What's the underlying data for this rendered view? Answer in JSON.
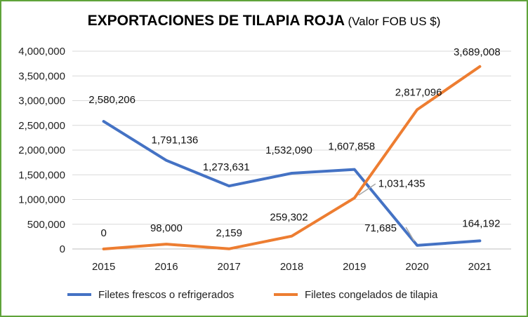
{
  "chart_data": {
    "type": "line",
    "title": "EXPORTACIONES DE TILAPIA ROJA",
    "subtitle": "(Valor FOB US $)",
    "categories": [
      "2015",
      "2016",
      "2017",
      "2018",
      "2019",
      "2020",
      "2021"
    ],
    "ylim": [
      0,
      4000000
    ],
    "yticks": [
      "0",
      "500,000",
      "1,000,000",
      "1,500,000",
      "2,000,000",
      "2,500,000",
      "3,000,000",
      "3,500,000",
      "4,000,000"
    ],
    "grid": true,
    "legend_position": "bottom",
    "series": [
      {
        "name": "Filetes frescos o refrigerados",
        "color": "#4472c4",
        "values": [
          2580206,
          1791136,
          1273631,
          1532090,
          1607858,
          71685,
          164192
        ],
        "labels": [
          "2,580,206",
          "1,791,136",
          "1,273,631",
          "1,532,090",
          "1,607,858",
          "71,685",
          "164,192"
        ]
      },
      {
        "name": "Filetes congelados de tilapia",
        "color": "#ed7d31",
        "values": [
          0,
          98000,
          2159,
          259302,
          1031435,
          2817096,
          3689008
        ],
        "labels": [
          "0",
          "98,000",
          "2,159",
          "259,302",
          "1,031,435",
          "2,817,096",
          "3,689,008"
        ]
      }
    ]
  }
}
